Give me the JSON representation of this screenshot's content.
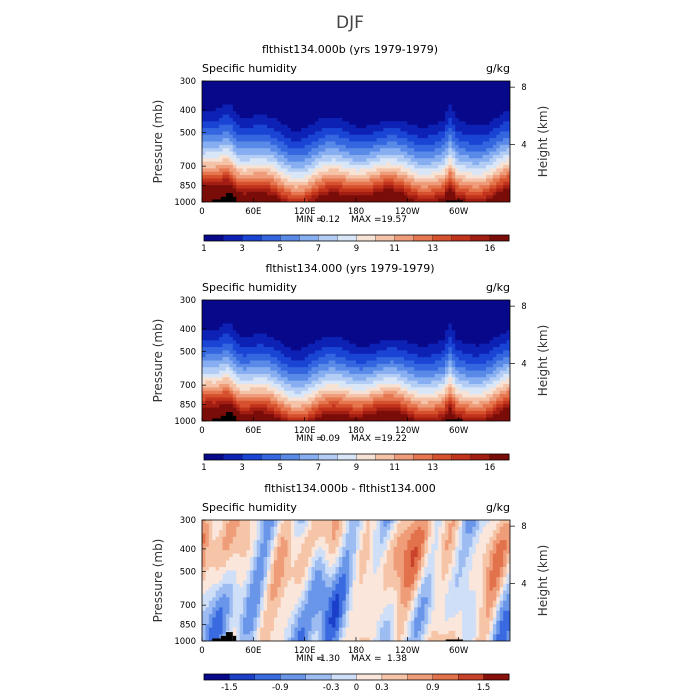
{
  "figure": {
    "suptitle": "DJF"
  },
  "chart_data": [
    {
      "type": "heatmap",
      "title": "flthist134.000b (yrs 1979-1979)",
      "left_label": "Specific humidity",
      "units": "g/kg",
      "ylabel": "Pressure (mb)",
      "ylabel_right": "Height (km)",
      "x_ticks": [
        "0",
        "60E",
        "120E",
        "180",
        "120W",
        "60W"
      ],
      "x_tick_values": [
        0,
        60,
        120,
        180,
        240,
        300
      ],
      "xlim": [
        0,
        360
      ],
      "y_ticks": [
        "300",
        "400",
        "500",
        "700",
        "850",
        "1000"
      ],
      "y_tick_values": [
        300,
        400,
        500,
        700,
        850,
        1000
      ],
      "ylim": [
        1000,
        300
      ],
      "y_scale": "log",
      "right_ticks": [
        "8",
        "4"
      ],
      "right_tick_values": [
        8,
        4
      ],
      "min_label": "MIN =",
      "min_value": "0.12",
      "max_label": "MAX =",
      "max_value": "19.57",
      "colorbar_labels": [
        "1",
        "3",
        "5",
        "7",
        "9",
        "11",
        "13",
        "16"
      ],
      "colorbar_colors": [
        "#08088a",
        "#0d22b5",
        "#1a44d4",
        "#3466e0",
        "#5a8ae8",
        "#86aef0",
        "#b3cdf5",
        "#d9e6f7",
        "#f7e3d6",
        "#f5c3a8",
        "#ef9c7a",
        "#e5764f",
        "#d6512e",
        "#c2331c",
        "#a21d12",
        "#7a0d09"
      ],
      "colorbar_levels": [
        1,
        2,
        3,
        4,
        5,
        6,
        7,
        8,
        9,
        10,
        11,
        12,
        13,
        14,
        15,
        16,
        17
      ]
    },
    {
      "type": "heatmap",
      "title": "flthist134.000 (yrs 1979-1979)",
      "left_label": "Specific humidity",
      "units": "g/kg",
      "ylabel": "Pressure (mb)",
      "ylabel_right": "Height (km)",
      "x_ticks": [
        "0",
        "60E",
        "120E",
        "180",
        "120W",
        "60W"
      ],
      "x_tick_values": [
        0,
        60,
        120,
        180,
        240,
        300
      ],
      "xlim": [
        0,
        360
      ],
      "y_ticks": [
        "300",
        "400",
        "500",
        "700",
        "850",
        "1000"
      ],
      "y_tick_values": [
        300,
        400,
        500,
        700,
        850,
        1000
      ],
      "ylim": [
        1000,
        300
      ],
      "y_scale": "log",
      "right_ticks": [
        "8",
        "4"
      ],
      "right_tick_values": [
        8,
        4
      ],
      "min_label": "MIN =",
      "min_value": "0.09",
      "max_label": "MAX =",
      "max_value": "19.22",
      "colorbar_labels": [
        "1",
        "3",
        "5",
        "7",
        "9",
        "11",
        "13",
        "16"
      ],
      "colorbar_colors": [
        "#08088a",
        "#0d22b5",
        "#1a44d4",
        "#3466e0",
        "#5a8ae8",
        "#86aef0",
        "#b3cdf5",
        "#d9e6f7",
        "#f7e3d6",
        "#f5c3a8",
        "#ef9c7a",
        "#e5764f",
        "#d6512e",
        "#c2331c",
        "#a21d12",
        "#7a0d09"
      ],
      "colorbar_levels": [
        1,
        2,
        3,
        4,
        5,
        6,
        7,
        8,
        9,
        10,
        11,
        12,
        13,
        14,
        15,
        16,
        17
      ]
    },
    {
      "type": "heatmap",
      "title": "flthist134.000b - flthist134.000",
      "left_label": "Specific humidity",
      "units": "g/kg",
      "ylabel": "Pressure (mb)",
      "ylabel_right": "Height (km)",
      "x_ticks": [
        "0",
        "60E",
        "120E",
        "180",
        "120W",
        "60W"
      ],
      "x_tick_values": [
        0,
        60,
        120,
        180,
        240,
        300
      ],
      "xlim": [
        0,
        360
      ],
      "y_ticks": [
        "300",
        "400",
        "500",
        "700",
        "850",
        "1000"
      ],
      "y_tick_values": [
        300,
        400,
        500,
        700,
        850,
        1000
      ],
      "ylim": [
        1000,
        300
      ],
      "y_scale": "log",
      "right_ticks": [
        "8",
        "4"
      ],
      "right_tick_values": [
        8,
        4
      ],
      "min_label": "MIN =",
      "min_value": "-1.30",
      "max_label": "MAX =",
      "max_value": "1.38",
      "colorbar_labels": [
        "-1.5",
        "-0.9",
        "-0.3",
        "0",
        "0.3",
        "0.9",
        "1.5"
      ],
      "colorbar_colors": [
        "#08088a",
        "#1a3fc8",
        "#3a6ae0",
        "#6a96ea",
        "#9dbcf2",
        "#cfdff8",
        "#fae6da",
        "#f6c5a8",
        "#ef9d79",
        "#e2724b",
        "#c9422a",
        "#8a110b"
      ],
      "colorbar_levels": [
        -1.8,
        -1.5,
        -1.2,
        -0.9,
        -0.6,
        -0.3,
        0,
        0.3,
        0.6,
        0.9,
        1.2,
        1.5,
        1.8
      ]
    }
  ]
}
